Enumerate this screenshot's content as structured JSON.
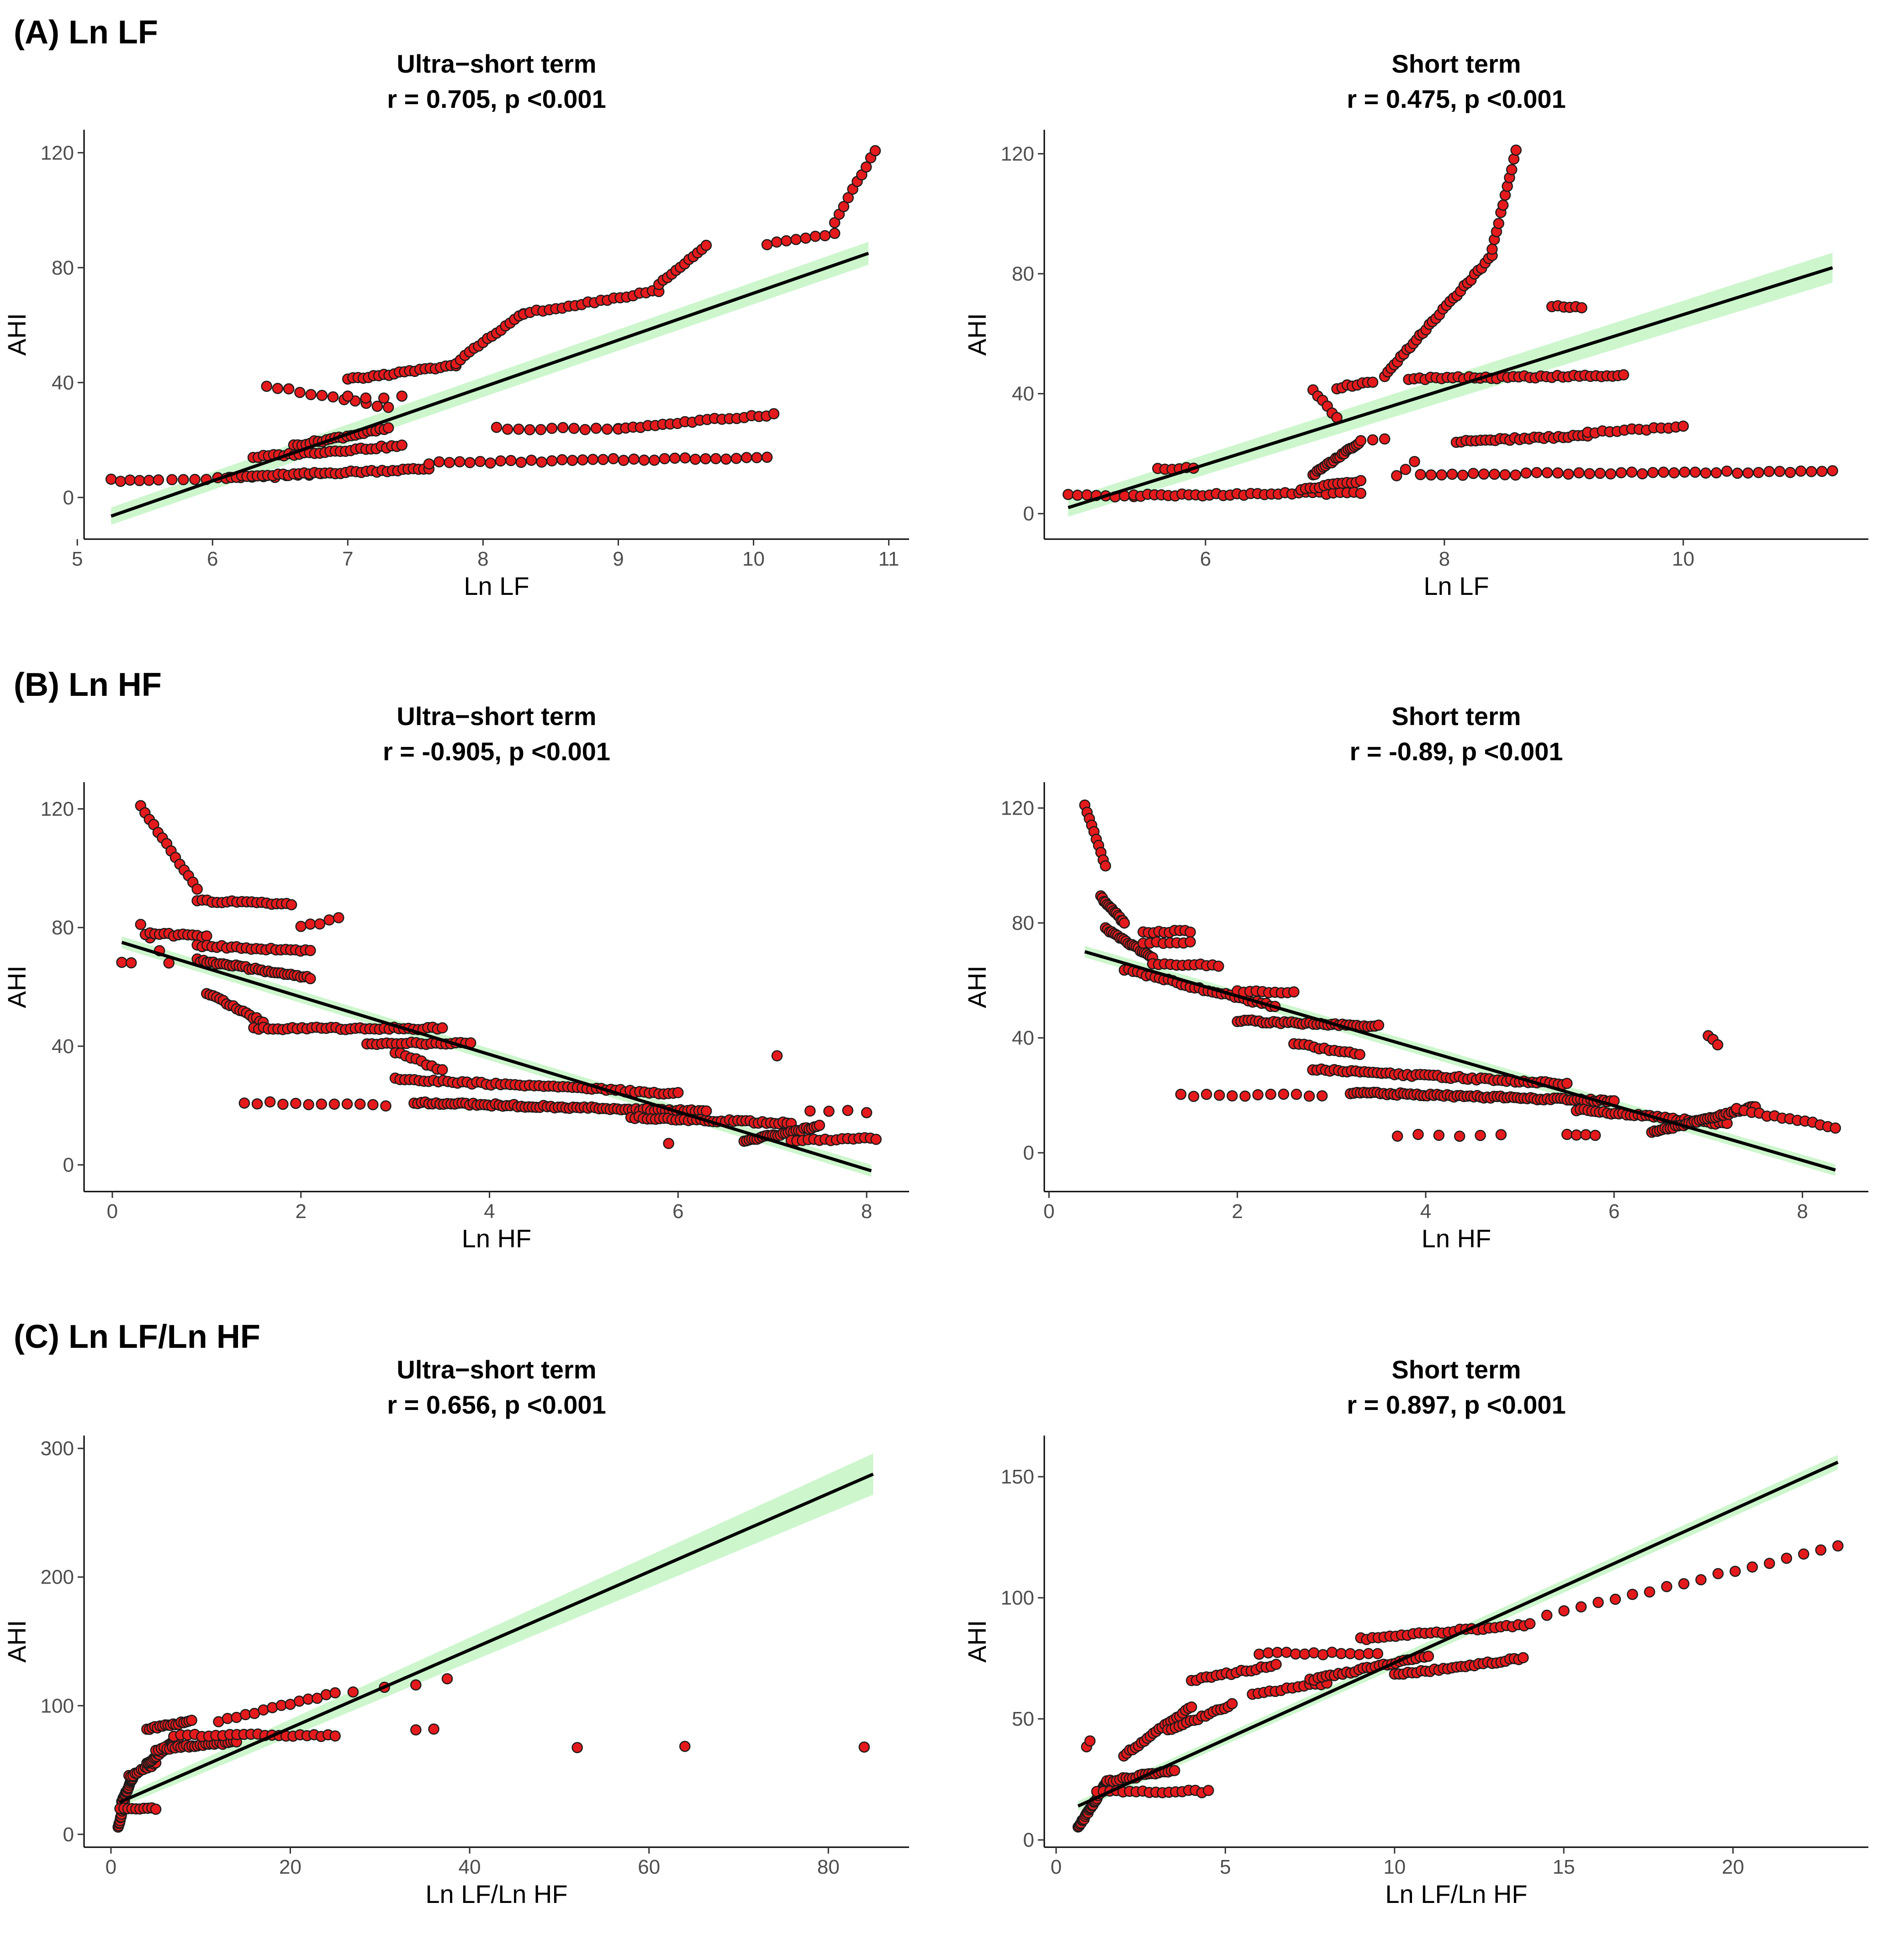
{
  "sections": [
    {
      "label": "(A) Ln LF"
    },
    {
      "label": "(B) Ln HF"
    },
    {
      "label": "(C) Ln LF/Ln HF"
    }
  ],
  "colors": {
    "point_fill": "#e41a1c",
    "point_stroke": "#1a1a1a",
    "line": "#000000",
    "ribbon": "#c8f5c8"
  },
  "chart_data": [
    {
      "type": "scatter",
      "section": 0,
      "title_line1": "Ultra−short term",
      "title_line2": "r = 0.705, p <0.001",
      "xlabel": "Ln LF",
      "ylabel": "AHI",
      "xlim": [
        5.05,
        11.15
      ],
      "ylim": [
        -14.5,
        128
      ],
      "xticks": [
        5,
        6,
        7,
        8,
        9,
        10,
        11
      ],
      "yticks": [
        0,
        40,
        80,
        120
      ],
      "fit": {
        "x": [
          5.25,
          10.85
        ],
        "y": [
          -6.5,
          85
        ]
      },
      "ribbon_width": [
        3,
        4
      ],
      "clusters": [
        {
          "x0": 5.25,
          "x1": 5.6,
          "y0": 6,
          "y1": 6,
          "n": 6
        },
        {
          "x0": 5.7,
          "x1": 6.8,
          "y0": 6,
          "y1": 8,
          "n": 14
        },
        {
          "x0": 6.1,
          "x1": 7.6,
          "y0": 7,
          "y1": 10,
          "n": 40
        },
        {
          "x0": 6.3,
          "x1": 7.4,
          "y0": 14,
          "y1": 18,
          "n": 30
        },
        {
          "x0": 6.6,
          "x1": 7.3,
          "y0": 18,
          "y1": 24,
          "n": 24
        },
        {
          "x0": 6.4,
          "x1": 7.3,
          "y0": 39,
          "y1": 31,
          "n": 12
        },
        {
          "x0": 7.0,
          "x1": 7.4,
          "y0": 35,
          "y1": 35,
          "n": 4
        },
        {
          "x0": 7.6,
          "x1": 10.1,
          "y0": 12,
          "y1": 14,
          "n": 34
        },
        {
          "x0": 8.1,
          "x1": 9.0,
          "y0": 24,
          "y1": 24,
          "n": 12
        },
        {
          "x0": 9.0,
          "x1": 10.15,
          "y0": 24,
          "y1": 29,
          "n": 22
        },
        {
          "x0": 7.0,
          "x1": 7.8,
          "y0": 41,
          "y1": 46,
          "n": 22
        },
        {
          "x0": 7.8,
          "x1": 8.3,
          "y0": 47,
          "y1": 64,
          "n": 16
        },
        {
          "x0": 8.3,
          "x1": 9.3,
          "y0": 64,
          "y1": 72,
          "n": 22
        },
        {
          "x0": 9.3,
          "x1": 9.65,
          "y0": 74,
          "y1": 88,
          "n": 12
        },
        {
          "x0": 10.1,
          "x1": 10.6,
          "y0": 88,
          "y1": 92,
          "n": 8
        },
        {
          "x0": 10.6,
          "x1": 10.9,
          "y0": 96,
          "y1": 121,
          "n": 10
        }
      ]
    },
    {
      "type": "scatter",
      "section": 0,
      "title_line1": "Short term",
      "title_line2": "r = 0.475, p <0.001",
      "xlabel": "Ln LF",
      "ylabel": "AHI",
      "xlim": [
        4.65,
        11.55
      ],
      "ylim": [
        -8.5,
        128
      ],
      "xticks": [
        6,
        8,
        10
      ],
      "yticks": [
        0,
        40,
        80,
        120
      ],
      "fit": {
        "x": [
          4.85,
          11.25
        ],
        "y": [
          2,
          82
        ]
      },
      "ribbon_width": [
        3,
        5
      ],
      "clusters": [
        {
          "x0": 4.85,
          "x1": 5.4,
          "y0": 6,
          "y1": 6,
          "n": 8
        },
        {
          "x0": 5.4,
          "x1": 7.3,
          "y0": 6,
          "y1": 7,
          "n": 34
        },
        {
          "x0": 5.6,
          "x1": 5.9,
          "y0": 15,
          "y1": 15,
          "n": 6
        },
        {
          "x0": 6.8,
          "x1": 7.3,
          "y0": 8,
          "y1": 11,
          "n": 14
        },
        {
          "x0": 6.9,
          "x1": 7.3,
          "y0": 13,
          "y1": 24,
          "n": 24
        },
        {
          "x0": 6.9,
          "x1": 7.1,
          "y0": 41,
          "y1": 32,
          "n": 6
        },
        {
          "x0": 7.1,
          "x1": 7.4,
          "y0": 42,
          "y1": 44,
          "n": 8
        },
        {
          "x0": 7.5,
          "x1": 7.9,
          "y0": 46,
          "y1": 64,
          "n": 16
        },
        {
          "x0": 7.9,
          "x1": 8.4,
          "y0": 64,
          "y1": 86,
          "n": 18
        },
        {
          "x0": 8.4,
          "x1": 8.6,
          "y0": 88,
          "y1": 121,
          "n": 12
        },
        {
          "x0": 7.7,
          "x1": 9.5,
          "y0": 45,
          "y1": 46,
          "n": 40
        },
        {
          "x0": 8.9,
          "x1": 9.15,
          "y0": 69,
          "y1": 69,
          "n": 6
        },
        {
          "x0": 7.6,
          "x1": 7.75,
          "y0": 13,
          "y1": 17,
          "n": 3
        },
        {
          "x0": 7.8,
          "x1": 11.25,
          "y0": 13,
          "y1": 14,
          "n": 40
        },
        {
          "x0": 8.1,
          "x1": 9.2,
          "y0": 24,
          "y1": 26,
          "n": 28
        },
        {
          "x0": 9.2,
          "x1": 10.0,
          "y0": 27,
          "y1": 29,
          "n": 14
        },
        {
          "x0": 7.4,
          "x1": 7.5,
          "y0": 25,
          "y1": 25,
          "n": 2
        }
      ]
    },
    {
      "type": "scatter",
      "section": 1,
      "title_line1": "Ultra−short term",
      "title_line2": "r = -0.905, p <0.001",
      "xlabel": "Ln HF",
      "ylabel": "AHI",
      "xlim": [
        -0.3,
        8.45
      ],
      "ylim": [
        -9,
        129
      ],
      "xticks": [
        0,
        2,
        4,
        6,
        8
      ],
      "yticks": [
        0,
        40,
        80,
        120
      ],
      "fit": {
        "x": [
          0.1,
          8.05
        ],
        "y": [
          75,
          -2
        ]
      },
      "ribbon_width": [
        2,
        2
      ],
      "clusters": [
        {
          "x0": 0.1,
          "x1": 0.2,
          "y0": 68,
          "y1": 68,
          "n": 2
        },
        {
          "x0": 0.3,
          "x1": 0.9,
          "y0": 121,
          "y1": 93,
          "n": 14
        },
        {
          "x0": 0.3,
          "x1": 0.6,
          "y0": 81,
          "y1": 68,
          "n": 4
        },
        {
          "x0": 0.35,
          "x1": 1.0,
          "y0": 78,
          "y1": 77,
          "n": 14
        },
        {
          "x0": 0.9,
          "x1": 1.9,
          "y0": 89,
          "y1": 88,
          "n": 20
        },
        {
          "x0": 0.9,
          "x1": 2.1,
          "y0": 74,
          "y1": 72,
          "n": 24
        },
        {
          "x0": 0.9,
          "x1": 2.1,
          "y0": 69,
          "y1": 63,
          "n": 36
        },
        {
          "x0": 1.0,
          "x1": 1.6,
          "y0": 58,
          "y1": 48,
          "n": 18
        },
        {
          "x0": 1.5,
          "x1": 3.5,
          "y0": 46,
          "y1": 46,
          "n": 40
        },
        {
          "x0": 2.0,
          "x1": 2.4,
          "y0": 80,
          "y1": 83,
          "n": 5
        },
        {
          "x0": 2.7,
          "x1": 3.8,
          "y0": 41,
          "y1": 41,
          "n": 22
        },
        {
          "x0": 3.0,
          "x1": 3.5,
          "y0": 38,
          "y1": 32,
          "n": 10
        },
        {
          "x0": 3.0,
          "x1": 6.0,
          "y0": 29,
          "y1": 24,
          "n": 60
        },
        {
          "x0": 1.4,
          "x1": 2.9,
          "y0": 21,
          "y1": 20,
          "n": 12
        },
        {
          "x0": 3.2,
          "x1": 6.3,
          "y0": 21,
          "y1": 18,
          "n": 80
        },
        {
          "x0": 5.5,
          "x1": 7.2,
          "y0": 16,
          "y1": 14,
          "n": 40
        },
        {
          "x0": 6.7,
          "x1": 7.5,
          "y0": 8,
          "y1": 13,
          "n": 30
        },
        {
          "x0": 7.2,
          "x1": 8.1,
          "y0": 8,
          "y1": 9,
          "n": 16
        },
        {
          "x0": 7.05,
          "x1": 7.1,
          "y0": 37,
          "y1": 37,
          "n": 1
        },
        {
          "x0": 5.9,
          "x1": 5.9,
          "y0": 7,
          "y1": 7,
          "n": 1
        },
        {
          "x0": 7.4,
          "x1": 8.0,
          "y0": 18,
          "y1": 18,
          "n": 4
        }
      ]
    },
    {
      "type": "scatter",
      "section": 1,
      "title_line1": "Short term",
      "title_line2": "r = -0.89, p <0.001",
      "xlabel": "Ln HF",
      "ylabel": "AHI",
      "xlim": [
        -0.05,
        8.7
      ],
      "ylim": [
        -13.5,
        129
      ],
      "xticks": [
        0,
        2,
        4,
        6,
        8
      ],
      "yticks": [
        0,
        40,
        80,
        120
      ],
      "fit": {
        "x": [
          0.38,
          8.35
        ],
        "y": [
          70,
          -6
        ]
      },
      "ribbon_width": [
        2,
        2
      ],
      "clusters": [
        {
          "x0": 0.38,
          "x1": 0.6,
          "y0": 121,
          "y1": 100,
          "n": 10
        },
        {
          "x0": 0.55,
          "x1": 0.8,
          "y0": 89,
          "y1": 80,
          "n": 16
        },
        {
          "x0": 0.6,
          "x1": 1.1,
          "y0": 78,
          "y1": 68,
          "n": 24
        },
        {
          "x0": 1.0,
          "x1": 1.5,
          "y0": 77,
          "y1": 77,
          "n": 10
        },
        {
          "x0": 0.8,
          "x1": 1.5,
          "y0": 64,
          "y1": 58,
          "n": 16
        },
        {
          "x0": 1.0,
          "x1": 1.5,
          "y0": 73,
          "y1": 73,
          "n": 8
        },
        {
          "x0": 1.1,
          "x1": 1.8,
          "y0": 66,
          "y1": 65,
          "n": 12
        },
        {
          "x0": 1.5,
          "x1": 2.4,
          "y0": 58,
          "y1": 51,
          "n": 20
        },
        {
          "x0": 2.0,
          "x1": 2.6,
          "y0": 56,
          "y1": 56,
          "n": 10
        },
        {
          "x0": 2.0,
          "x1": 3.5,
          "y0": 46,
          "y1": 44,
          "n": 40
        },
        {
          "x0": 2.6,
          "x1": 3.3,
          "y0": 38,
          "y1": 34,
          "n": 14
        },
        {
          "x0": 2.8,
          "x1": 5.5,
          "y0": 29,
          "y1": 24,
          "n": 60
        },
        {
          "x0": 1.4,
          "x1": 2.9,
          "y0": 20,
          "y1": 20,
          "n": 12
        },
        {
          "x0": 3.2,
          "x1": 6.0,
          "y0": 21,
          "y1": 18,
          "n": 80
        },
        {
          "x0": 5.6,
          "x1": 7.2,
          "y0": 15,
          "y1": 10,
          "n": 40
        },
        {
          "x0": 6.4,
          "x1": 7.5,
          "y0": 7,
          "y1": 16,
          "n": 40
        },
        {
          "x0": 7.3,
          "x1": 8.35,
          "y0": 15,
          "y1": 9,
          "n": 14
        },
        {
          "x0": 3.7,
          "x1": 4.8,
          "y0": 6,
          "y1": 6,
          "n": 6
        },
        {
          "x0": 5.5,
          "x1": 5.8,
          "y0": 6,
          "y1": 6,
          "n": 4
        },
        {
          "x0": 7.0,
          "x1": 7.1,
          "y0": 41,
          "y1": 38,
          "n": 3
        }
      ]
    },
    {
      "type": "scatter",
      "section": 2,
      "title_line1": "Ultra−short term",
      "title_line2": "r = 0.656, p <0.001",
      "xlabel": "Ln LF/Ln HF",
      "ylabel": "AHI",
      "xlim": [
        -3,
        89
      ],
      "ylim": [
        -10,
        310
      ],
      "xticks": [
        0,
        20,
        40,
        60,
        80
      ],
      "yticks": [
        0,
        100,
        200,
        300
      ],
      "fit": {
        "x": [
          1,
          85
        ],
        "y": [
          25,
          280
        ]
      },
      "ribbon_width": [
        4,
        16
      ],
      "clusters": [
        {
          "x0": 0.8,
          "x1": 1.5,
          "y0": 5,
          "y1": 25,
          "n": 14
        },
        {
          "x0": 1.2,
          "x1": 2.5,
          "y0": 25,
          "y1": 45,
          "n": 18
        },
        {
          "x0": 1.0,
          "x1": 5.0,
          "y0": 20,
          "y1": 20,
          "n": 10
        },
        {
          "x0": 2.0,
          "x1": 5.0,
          "y0": 45,
          "y1": 55,
          "n": 14
        },
        {
          "x0": 4.0,
          "x1": 7.5,
          "y0": 55,
          "y1": 75,
          "n": 24
        },
        {
          "x0": 4.0,
          "x1": 9.0,
          "y0": 82,
          "y1": 88,
          "n": 18
        },
        {
          "x0": 5.0,
          "x1": 14.0,
          "y0": 66,
          "y1": 72,
          "n": 30
        },
        {
          "x0": 7.0,
          "x1": 25.0,
          "y0": 77,
          "y1": 77,
          "n": 24
        },
        {
          "x0": 12.0,
          "x1": 25.0,
          "y0": 88,
          "y1": 110,
          "n": 14
        },
        {
          "x0": 27.0,
          "x1": 37.5,
          "y0": 110,
          "y1": 120,
          "n": 4
        },
        {
          "x0": 34.0,
          "x1": 36.0,
          "y0": 81,
          "y1": 81,
          "n": 2
        },
        {
          "x0": 52.0,
          "x1": 52.0,
          "y0": 68,
          "y1": 68,
          "n": 1
        },
        {
          "x0": 64.0,
          "x1": 64.0,
          "y0": 68,
          "y1": 68,
          "n": 1
        },
        {
          "x0": 84.0,
          "x1": 84.0,
          "y0": 68,
          "y1": 68,
          "n": 1
        }
      ]
    },
    {
      "type": "scatter",
      "section": 2,
      "title_line1": "Short term",
      "title_line2": "r = 0.897, p <0.001",
      "xlabel": "Ln LF/Ln HF",
      "ylabel": "AHI",
      "xlim": [
        -0.35,
        24.0
      ],
      "ylim": [
        -3,
        167
      ],
      "xticks": [
        0,
        5,
        10,
        15,
        20
      ],
      "yticks": [
        0,
        50,
        100,
        150
      ],
      "fit": {
        "x": [
          0.65,
          23.1
        ],
        "y": [
          14,
          156
        ]
      },
      "ribbon_width": [
        2,
        3
      ],
      "clusters": [
        {
          "x0": 0.65,
          "x1": 1.5,
          "y0": 5,
          "y1": 24,
          "n": 30
        },
        {
          "x0": 0.9,
          "x1": 1.0,
          "y0": 38,
          "y1": 41,
          "n": 2
        },
        {
          "x0": 1.2,
          "x1": 4.5,
          "y0": 20,
          "y1": 20,
          "n": 18
        },
        {
          "x0": 1.5,
          "x1": 3.5,
          "y0": 24,
          "y1": 29,
          "n": 22
        },
        {
          "x0": 2.0,
          "x1": 4.0,
          "y0": 35,
          "y1": 55,
          "n": 24
        },
        {
          "x0": 3.3,
          "x1": 5.2,
          "y0": 45,
          "y1": 56,
          "n": 18
        },
        {
          "x0": 4.0,
          "x1": 6.5,
          "y0": 66,
          "y1": 72,
          "n": 18
        },
        {
          "x0": 5.8,
          "x1": 8.0,
          "y0": 60,
          "y1": 65,
          "n": 14
        },
        {
          "x0": 6.0,
          "x1": 9.5,
          "y0": 77,
          "y1": 77,
          "n": 14
        },
        {
          "x0": 7.5,
          "x1": 11.0,
          "y0": 66,
          "y1": 76,
          "n": 30
        },
        {
          "x0": 9.0,
          "x1": 14.0,
          "y0": 83,
          "y1": 89,
          "n": 30
        },
        {
          "x0": 10.0,
          "x1": 13.8,
          "y0": 68,
          "y1": 75,
          "n": 30
        },
        {
          "x0": 14.5,
          "x1": 23.1,
          "y0": 93,
          "y1": 121,
          "n": 18
        }
      ]
    }
  ]
}
